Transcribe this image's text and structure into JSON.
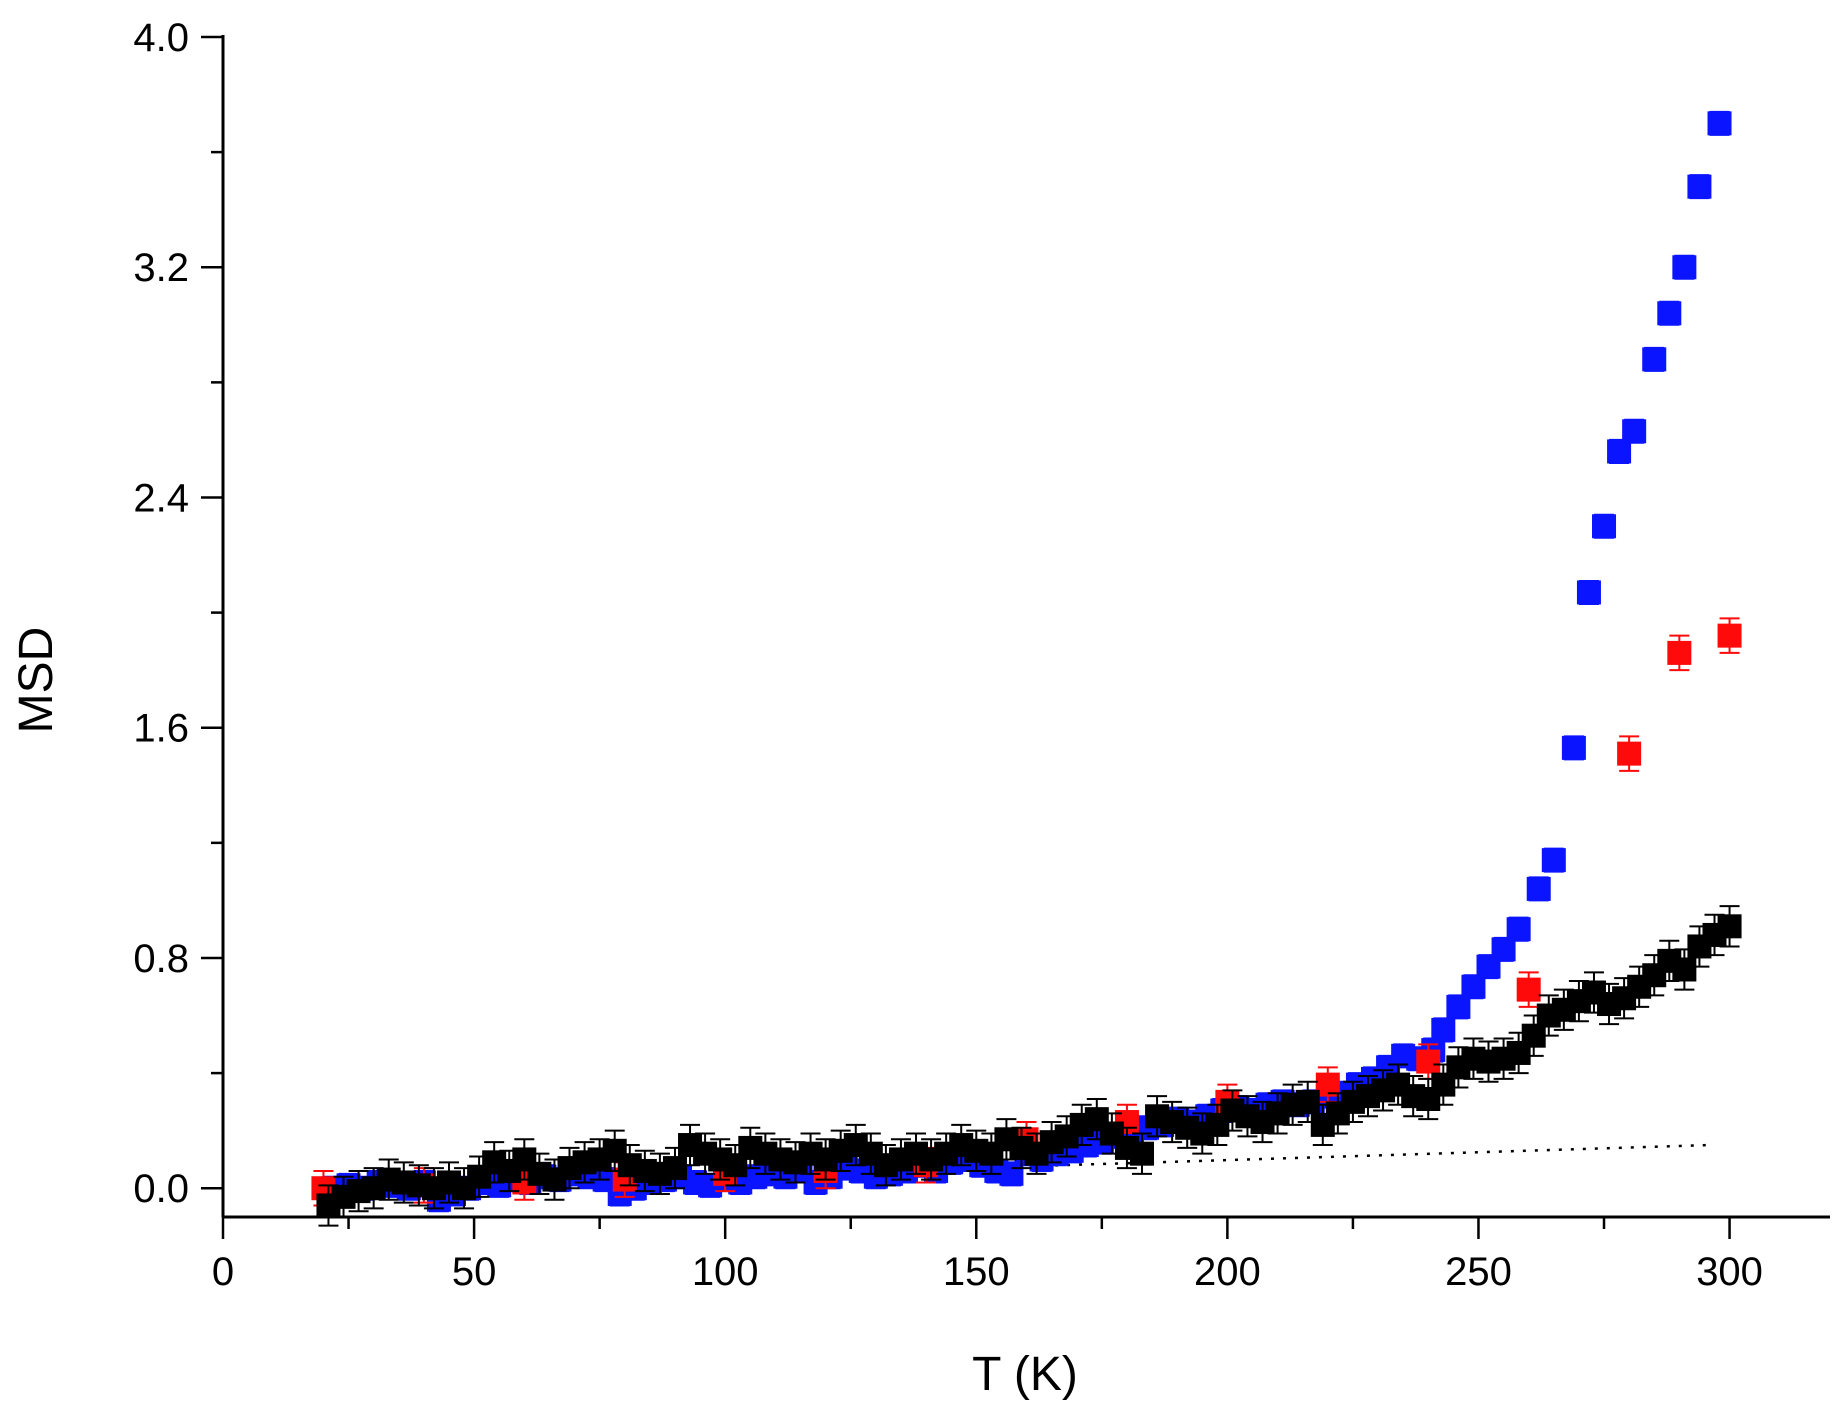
{
  "chart_data": {
    "type": "scatter",
    "xlabel": "T (K)",
    "ylabel": "MSD",
    "xlim": [
      0,
      320
    ],
    "ylim": [
      -0.1,
      4.0
    ],
    "xticks": [
      0,
      50,
      100,
      150,
      200,
      250,
      300
    ],
    "yticks": [
      0.0,
      0.8,
      1.6,
      2.4,
      3.2,
      4.0
    ],
    "ytick_labels": [
      "0.0",
      "0.8",
      "1.6",
      "2.4",
      "3.2",
      "4.0"
    ],
    "grid": false,
    "series": [
      {
        "color": "#0a14ff",
        "error": 0.04,
        "points": [
          [
            22,
            0.0
          ],
          [
            25,
            0.01
          ],
          [
            28,
            0.0
          ],
          [
            31,
            0.02
          ],
          [
            34,
            0.01
          ],
          [
            37,
            0.0
          ],
          [
            40,
            0.02
          ],
          [
            43,
            -0.04
          ],
          [
            46,
            -0.02
          ],
          [
            49,
            0.0
          ],
          [
            52,
            0.02
          ],
          [
            55,
            0.01
          ],
          [
            58,
            0.03
          ],
          [
            61,
            0.02
          ],
          [
            64,
            0.04
          ],
          [
            67,
            0.03
          ],
          [
            70,
            0.05
          ],
          [
            73,
            0.04
          ],
          [
            76,
            0.03
          ],
          [
            79,
            -0.02
          ],
          [
            82,
            0.0
          ],
          [
            85,
            0.02
          ],
          [
            88,
            0.03
          ],
          [
            91,
            0.04
          ],
          [
            94,
            0.02
          ],
          [
            97,
            0.01
          ],
          [
            100,
            0.03
          ],
          [
            103,
            0.02
          ],
          [
            106,
            0.04
          ],
          [
            109,
            0.05
          ],
          [
            112,
            0.04
          ],
          [
            115,
            0.06
          ],
          [
            118,
            0.02
          ],
          [
            121,
            0.04
          ],
          [
            124,
            0.07
          ],
          [
            127,
            0.06
          ],
          [
            130,
            0.04
          ],
          [
            133,
            0.05
          ],
          [
            136,
            0.06
          ],
          [
            139,
            0.08
          ],
          [
            142,
            0.06
          ],
          [
            145,
            0.09
          ],
          [
            148,
            0.1
          ],
          [
            151,
            0.08
          ],
          [
            154,
            0.06
          ],
          [
            157,
            0.05
          ],
          [
            160,
            0.12
          ],
          [
            163,
            0.1
          ],
          [
            166,
            0.12
          ],
          [
            169,
            0.13
          ],
          [
            172,
            0.15
          ],
          [
            175,
            0.16
          ],
          [
            178,
            0.18
          ],
          [
            181,
            0.19
          ],
          [
            184,
            0.21
          ],
          [
            187,
            0.22
          ],
          [
            190,
            0.24
          ],
          [
            193,
            0.23
          ],
          [
            196,
            0.25
          ],
          [
            199,
            0.27
          ],
          [
            202,
            0.28
          ],
          [
            205,
            0.27
          ],
          [
            208,
            0.29
          ],
          [
            211,
            0.3
          ],
          [
            214,
            0.29
          ],
          [
            217,
            0.3
          ],
          [
            220,
            0.32
          ],
          [
            223,
            0.33
          ],
          [
            226,
            0.36
          ],
          [
            229,
            0.38
          ],
          [
            232,
            0.42
          ],
          [
            235,
            0.46
          ],
          [
            238,
            0.45
          ],
          [
            241,
            0.48
          ],
          [
            243,
            0.55
          ],
          [
            246,
            0.63
          ],
          [
            249,
            0.7
          ],
          [
            252,
            0.77
          ],
          [
            255,
            0.83
          ],
          [
            258,
            0.9
          ],
          [
            262,
            1.04
          ],
          [
            265,
            1.14
          ],
          [
            269,
            1.53
          ],
          [
            272,
            2.07
          ],
          [
            275,
            2.3
          ],
          [
            278,
            2.56
          ],
          [
            281,
            2.63
          ],
          [
            285,
            2.88
          ],
          [
            288,
            3.04
          ],
          [
            291,
            3.2
          ],
          [
            294,
            3.48
          ],
          [
            298,
            3.7
          ]
        ]
      },
      {
        "color": "#ff0a0a",
        "error": 0.06,
        "points": [
          [
            20,
            0.0
          ],
          [
            40,
            0.01
          ],
          [
            60,
            0.02
          ],
          [
            80,
            0.03
          ],
          [
            100,
            0.05
          ],
          [
            120,
            0.06
          ],
          [
            140,
            0.08
          ],
          [
            160,
            0.17
          ],
          [
            180,
            0.23
          ],
          [
            200,
            0.3
          ],
          [
            220,
            0.36
          ],
          [
            240,
            0.44
          ],
          [
            260,
            0.69
          ],
          [
            280,
            1.51
          ],
          [
            290,
            1.86
          ],
          [
            300,
            1.92
          ]
        ]
      },
      {
        "color": "#000000",
        "error": 0.07,
        "points": [
          [
            21,
            -0.06
          ],
          [
            24,
            -0.03
          ],
          [
            27,
            -0.01
          ],
          [
            30,
            0.0
          ],
          [
            33,
            0.03
          ],
          [
            36,
            0.02
          ],
          [
            39,
            0.01
          ],
          [
            42,
            0.0
          ],
          [
            45,
            0.02
          ],
          [
            48,
            0.0
          ],
          [
            51,
            0.04
          ],
          [
            54,
            0.09
          ],
          [
            57,
            0.06
          ],
          [
            60,
            0.1
          ],
          [
            63,
            0.05
          ],
          [
            66,
            0.03
          ],
          [
            69,
            0.07
          ],
          [
            72,
            0.09
          ],
          [
            75,
            0.1
          ],
          [
            78,
            0.13
          ],
          [
            81,
            0.08
          ],
          [
            84,
            0.06
          ],
          [
            87,
            0.05
          ],
          [
            90,
            0.07
          ],
          [
            93,
            0.15
          ],
          [
            96,
            0.12
          ],
          [
            99,
            0.1
          ],
          [
            102,
            0.08
          ],
          [
            105,
            0.14
          ],
          [
            108,
            0.12
          ],
          [
            111,
            0.1
          ],
          [
            114,
            0.09
          ],
          [
            117,
            0.12
          ],
          [
            120,
            0.1
          ],
          [
            123,
            0.13
          ],
          [
            126,
            0.15
          ],
          [
            129,
            0.12
          ],
          [
            132,
            0.08
          ],
          [
            135,
            0.1
          ],
          [
            138,
            0.12
          ],
          [
            141,
            0.1
          ],
          [
            144,
            0.12
          ],
          [
            147,
            0.15
          ],
          [
            150,
            0.13
          ],
          [
            153,
            0.12
          ],
          [
            156,
            0.17
          ],
          [
            159,
            0.14
          ],
          [
            162,
            0.12
          ],
          [
            165,
            0.16
          ],
          [
            168,
            0.18
          ],
          [
            171,
            0.22
          ],
          [
            174,
            0.24
          ],
          [
            177,
            0.19
          ],
          [
            180,
            0.14
          ],
          [
            183,
            0.12
          ],
          [
            186,
            0.25
          ],
          [
            189,
            0.23
          ],
          [
            192,
            0.21
          ],
          [
            195,
            0.19
          ],
          [
            198,
            0.22
          ],
          [
            201,
            0.27
          ],
          [
            204,
            0.25
          ],
          [
            207,
            0.23
          ],
          [
            210,
            0.26
          ],
          [
            213,
            0.29
          ],
          [
            216,
            0.3
          ],
          [
            219,
            0.22
          ],
          [
            222,
            0.26
          ],
          [
            225,
            0.3
          ],
          [
            228,
            0.32
          ],
          [
            231,
            0.34
          ],
          [
            234,
            0.36
          ],
          [
            237,
            0.32
          ],
          [
            240,
            0.31
          ],
          [
            243,
            0.36
          ],
          [
            246,
            0.42
          ],
          [
            249,
            0.45
          ],
          [
            252,
            0.44
          ],
          [
            255,
            0.45
          ],
          [
            258,
            0.47
          ],
          [
            261,
            0.53
          ],
          [
            264,
            0.6
          ],
          [
            267,
            0.62
          ],
          [
            270,
            0.65
          ],
          [
            273,
            0.68
          ],
          [
            276,
            0.64
          ],
          [
            279,
            0.66
          ],
          [
            282,
            0.7
          ],
          [
            285,
            0.74
          ],
          [
            288,
            0.79
          ],
          [
            291,
            0.76
          ],
          [
            294,
            0.84
          ],
          [
            297,
            0.88
          ],
          [
            300,
            0.91
          ]
        ]
      }
    ],
    "fit_line": {
      "style": "dotted",
      "color": "#000000",
      "x": [
        20,
        296
      ],
      "y": [
        0.0,
        0.15
      ]
    }
  }
}
